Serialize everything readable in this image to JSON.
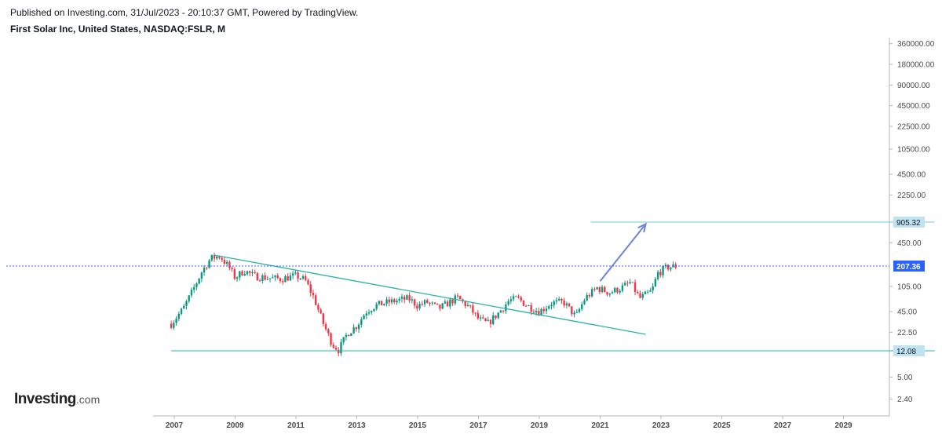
{
  "header": {
    "published": "Published on Investing.com, 31/Jul/2023 - 20:10:37 GMT, Powered by TradingView.",
    "symbol": "First Solar Inc, United States, NASDAQ:FSLR, M"
  },
  "logo": {
    "brand": "Investing",
    "suffix": ".com"
  },
  "chart_data": {
    "type": "candlestick",
    "scale": "log",
    "y_ticks": [
      "360000.00",
      "180000.00",
      "90000.00",
      "45000.00",
      "22500.00",
      "10500.00",
      "4500.00",
      "2250.00",
      "450.00",
      "105.00",
      "45.00",
      "22.50",
      "5.00",
      "2.40"
    ],
    "y_tick_values": [
      360000,
      180000,
      90000,
      45000,
      22500,
      10500,
      4500,
      2250,
      450,
      105,
      45,
      22.5,
      5,
      2.4
    ],
    "x_ticks": [
      "2007",
      "2009",
      "2011",
      "2013",
      "2015",
      "2017",
      "2019",
      "2021",
      "2023",
      "2025",
      "2027",
      "2029"
    ],
    "price_labels": [
      {
        "value": "905.32",
        "kind": "target"
      },
      {
        "value": "207.36",
        "kind": "current"
      },
      {
        "value": "12.08",
        "kind": "support"
      }
    ],
    "current_price": 207.36,
    "target_price": 905.32,
    "support_price": 12.08,
    "price_path": [
      [
        2006.9,
        30
      ],
      [
        2007.3,
        50
      ],
      [
        2007.6,
        90
      ],
      [
        2007.9,
        170
      ],
      [
        2008.2,
        270
      ],
      [
        2008.5,
        290
      ],
      [
        2008.8,
        200
      ],
      [
        2009.0,
        140
      ],
      [
        2009.3,
        180
      ],
      [
        2009.6,
        150
      ],
      [
        2010.0,
        140
      ],
      [
        2010.5,
        135
      ],
      [
        2011.0,
        150
      ],
      [
        2011.3,
        130
      ],
      [
        2011.6,
        70
      ],
      [
        2011.9,
        30
      ],
      [
        2012.2,
        15
      ],
      [
        2012.4,
        12.5
      ],
      [
        2012.7,
        22
      ],
      [
        2013.0,
        28
      ],
      [
        2013.3,
        45
      ],
      [
        2013.6,
        55
      ],
      [
        2013.9,
        60
      ],
      [
        2014.3,
        65
      ],
      [
        2014.7,
        70
      ],
      [
        2015.0,
        55
      ],
      [
        2015.3,
        62
      ],
      [
        2015.7,
        50
      ],
      [
        2016.0,
        60
      ],
      [
        2016.3,
        72
      ],
      [
        2016.7,
        52
      ],
      [
        2017.0,
        35
      ],
      [
        2017.3,
        30
      ],
      [
        2017.7,
        45
      ],
      [
        2018.0,
        65
      ],
      [
        2018.3,
        70
      ],
      [
        2018.6,
        55
      ],
      [
        2019.0,
        45
      ],
      [
        2019.4,
        60
      ],
      [
        2019.8,
        62
      ],
      [
        2020.2,
        38
      ],
      [
        2020.5,
        70
      ],
      [
        2020.9,
        100
      ],
      [
        2021.3,
        85
      ],
      [
        2021.7,
        100
      ],
      [
        2022.0,
        120
      ],
      [
        2022.3,
        70
      ],
      [
        2022.7,
        90
      ],
      [
        2022.9,
        165
      ],
      [
        2023.2,
        200
      ],
      [
        2023.5,
        207
      ]
    ],
    "trendlines": [
      {
        "kind": "descending-resistance",
        "from": [
          2008.3,
          300
        ],
        "to": [
          2022.5,
          21
        ]
      },
      {
        "kind": "horizontal-support",
        "from": [
          2006.9,
          12.08
        ],
        "to": [
          2032.0,
          12.08
        ]
      },
      {
        "kind": "horizontal-target",
        "from": [
          2020.7,
          905.32
        ],
        "to": [
          2032.0,
          905.32
        ]
      },
      {
        "kind": "projection-arrow",
        "from": [
          2021.0,
          125
        ],
        "to": [
          2022.5,
          850
        ]
      }
    ],
    "colors": {
      "up": "#089981",
      "down": "#f23645",
      "trendline": "#2ab3a6",
      "level": "#6cc8e0",
      "current": "#2962ff",
      "arrow": "#6f84d6",
      "label_bg": "#bfe3f0"
    }
  }
}
